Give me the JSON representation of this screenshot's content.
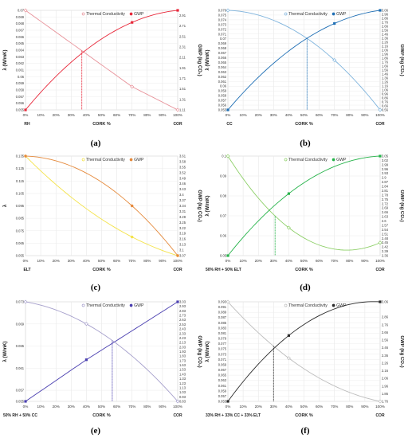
{
  "chart_data": [
    {
      "panel_label": "(a)",
      "type": "line",
      "xlabel": "CORK %",
      "ylabel": "λ (W/mK)",
      "y2label": "GWP (kg CO₂)",
      "left_category": "RH",
      "right_category": "COR",
      "x_ticks": [
        "0%",
        "10%",
        "20%",
        "30%",
        "40%",
        "50%",
        "60%",
        "70%",
        "80%",
        "90%",
        "100%"
      ],
      "y_ticks": [
        "0.07",
        "0.069",
        "0.068",
        "0.067",
        "0.066",
        "0.065",
        "0.064",
        "0.063",
        "0.062",
        "0.061",
        "0.06",
        "0.059",
        "0.058",
        "0.057",
        "0.056",
        "0.055"
      ],
      "y2_ticks": [
        "2.91",
        "2.71",
        "2.51",
        "2.31",
        "2.11",
        "1.91",
        "1.71",
        "1.51",
        "1.31",
        "1.11"
      ],
      "ylim": [
        0.055,
        0.07
      ],
      "y2lim": [
        1.11,
        3.01
      ],
      "grid": true,
      "legend_position": "top",
      "intersection_x": 37,
      "colors": {
        "primary": "#e8929a",
        "secondary": "#e8293b",
        "drop": "#e8293b"
      },
      "series": [
        {
          "name": "Thermal Conductivity",
          "axis": "left",
          "curve": "line",
          "x": [
            0,
            70,
            100
          ],
          "y": [
            0.07,
            0.0585,
            0.055
          ],
          "marker": "diamond"
        },
        {
          "name": "GWP",
          "axis": "right",
          "curve": "quad",
          "x": [
            0,
            70,
            100
          ],
          "y": [
            1.11,
            2.78,
            3.01
          ],
          "marker": "square"
        }
      ]
    },
    {
      "panel_label": "(b)",
      "type": "line",
      "xlabel": "CORK %",
      "ylabel": "λ (W/mK)",
      "y2label": "GWP (kg CO₂)",
      "left_category": "CC",
      "right_category": "COR",
      "x_ticks": [
        "0%",
        "10%",
        "20%",
        "30%",
        "40%",
        "50%",
        "60%",
        "70%",
        "80%",
        "90%",
        "100%"
      ],
      "y_ticks": [
        "0.076",
        "0.075",
        "0.074",
        "0.073",
        "0.072",
        "0.071",
        "0.07",
        "0.069",
        "0.068",
        "0.067",
        "0.066",
        "0.065",
        "0.064",
        "0.063",
        "0.062",
        "0.061",
        "0.06",
        "0.059",
        "0.058",
        "0.057",
        "0.056",
        "0.055"
      ],
      "y2_ticks": [
        "3.06",
        "2.96",
        "2.86",
        "2.76",
        "2.66",
        "2.56",
        "2.46",
        "2.36",
        "2.26",
        "2.16",
        "2.06",
        "1.96",
        "1.86",
        "1.76",
        "1.66",
        "1.56",
        "1.46",
        "1.36",
        "1.26",
        "1.16",
        "1.06",
        "0.96",
        "0.86",
        "0.76",
        "0.66",
        "0.56"
      ],
      "ylim": [
        0.055,
        0.076
      ],
      "y2lim": [
        0.56,
        3.06
      ],
      "grid": true,
      "legend_position": "top",
      "intersection_x": 52,
      "colors": {
        "primary": "#7fb4dd",
        "secondary": "#1f6fb5",
        "drop": "#1f6fb5"
      },
      "series": [
        {
          "name": "Thermal Conductivity",
          "axis": "left",
          "curve": "quad",
          "x": [
            0,
            70,
            100
          ],
          "y": [
            0.076,
            0.0655,
            0.055
          ],
          "marker": "diamond"
        },
        {
          "name": "GWP",
          "axis": "right",
          "curve": "quad",
          "x": [
            0,
            70,
            100
          ],
          "y": [
            0.56,
            2.73,
            3.06
          ],
          "marker": "square"
        }
      ]
    },
    {
      "panel_label": "(c)",
      "type": "line",
      "xlabel": "CORK %",
      "ylabel": "λ",
      "y2label": "GWP (kg CO₂)",
      "left_category": "ELT",
      "right_category": "COR",
      "x_ticks": [
        "0%",
        "10%",
        "20%",
        "30%",
        "40%",
        "50%",
        "60%",
        "70%",
        "80%",
        "90%",
        "100%"
      ],
      "y_ticks": [
        "0.135",
        "0.125",
        "0.115",
        "0.105",
        "0.095",
        "0.085",
        "0.075",
        "0.065",
        "0.055"
      ],
      "y2_ticks": [
        "3.61",
        "3.58",
        "3.55",
        "3.52",
        "3.49",
        "3.46",
        "3.43",
        "3.4",
        "3.37",
        "3.34",
        "3.31",
        "3.28",
        "3.25",
        "3.22",
        "3.19",
        "3.16",
        "3.13",
        "3.1",
        "3.07"
      ],
      "ylim": [
        0.055,
        0.135
      ],
      "y2lim": [
        3.07,
        3.61
      ],
      "grid": true,
      "legend_position": "top",
      "intersection_x": null,
      "colors": {
        "primary": "#f4e34a",
        "secondary": "#e58a3c",
        "drop": "#e58a3c"
      },
      "series": [
        {
          "name": "Thermal Conductivity",
          "axis": "left",
          "curve": "quad",
          "x": [
            0,
            70,
            100
          ],
          "y": [
            0.135,
            0.07,
            0.055
          ],
          "marker": "circle"
        },
        {
          "name": "GWP",
          "axis": "right",
          "curve": "quad",
          "x": [
            0,
            70,
            100
          ],
          "y": [
            3.61,
            3.34,
            3.07
          ],
          "marker": "circle"
        }
      ]
    },
    {
      "panel_label": "(d)",
      "type": "line",
      "xlabel": "CORK %",
      "ylabel": "λ (W/mK)",
      "y2label": "GWP (kg CO₂)",
      "left_category": "50% RH + 50% ELT",
      "right_category": "COR",
      "x_ticks": [
        "0%",
        "10%",
        "20%",
        "30%",
        "40%",
        "50%",
        "60%",
        "70%",
        "80%",
        "90%",
        "100%"
      ],
      "y_ticks": [
        "0.1",
        "0.09",
        "0.08",
        "0.07",
        "0.06",
        "0.05"
      ],
      "y2_ticks": [
        "3.05",
        "3.02",
        "2.99",
        "2.96",
        "2.93",
        "2.9",
        "2.87",
        "2.84",
        "2.81",
        "2.78",
        "2.75",
        "2.72",
        "2.69",
        "2.66",
        "2.63",
        "2.6",
        "2.57",
        "2.54",
        "2.51",
        "2.48",
        "2.45",
        "2.42",
        "2.39",
        "2.36"
      ],
      "ylim": [
        0.05,
        0.1
      ],
      "y2lim": [
        2.36,
        3.05
      ],
      "grid": true,
      "legend_position": "top",
      "intersection_x": 31,
      "colors": {
        "primary": "#8fd06a",
        "secondary": "#26b34a",
        "drop": "#26b34a"
      },
      "series": [
        {
          "name": "Thermal Conductivity",
          "axis": "left",
          "curve": "quad",
          "x": [
            0,
            40,
            100
          ],
          "y": [
            0.1,
            0.064,
            0.0565
          ],
          "marker": "diamond"
        },
        {
          "name": "GWP",
          "axis": "right",
          "curve": "quad",
          "x": [
            0,
            40,
            100
          ],
          "y": [
            2.36,
            2.79,
            3.05
          ],
          "marker": "square"
        }
      ]
    },
    {
      "panel_label": "(e)",
      "type": "line",
      "xlabel": "CORK %",
      "ylabel": "λ (W/mK)",
      "y2label": "GWP (kg CO₂)",
      "left_category": "50% RH + 50% CC",
      "right_category": "COR",
      "x_ticks": [
        "0%",
        "10%",
        "20%",
        "30%",
        "40%",
        "50%",
        "60%",
        "70%",
        "80%",
        "90%",
        "100%"
      ],
      "y_ticks": [
        "0.073",
        "0.069",
        "0.065",
        "0.061",
        "0.057",
        "0.055"
      ],
      "y2_ticks": [
        "3.03",
        "2.93",
        "2.83",
        "2.73",
        "2.63",
        "2.53",
        "2.43",
        "2.33",
        "2.23",
        "2.13",
        "2.03",
        "1.93",
        "1.83",
        "1.73",
        "1.63",
        "1.53",
        "1.43",
        "1.33",
        "1.23",
        "1.13",
        "1.03",
        "0.93",
        "0.83"
      ],
      "ylim": [
        0.055,
        0.073
      ],
      "y2lim": [
        0.83,
        3.03
      ],
      "grid": true,
      "legend_position": "top",
      "intersection_x": 57,
      "colors": {
        "primary": "#a6a0cc",
        "secondary": "#4a3fb0",
        "drop": "#4a3fb0"
      },
      "series": [
        {
          "name": "Thermal Conductivity",
          "axis": "left",
          "curve": "quad",
          "x": [
            0,
            40,
            100
          ],
          "y": [
            0.073,
            0.069,
            0.055
          ],
          "marker": "diamond"
        },
        {
          "name": "GWP",
          "axis": "right",
          "curve": "line",
          "x": [
            0,
            40,
            100
          ],
          "y": [
            0.83,
            1.75,
            3.03
          ],
          "marker": "square"
        }
      ]
    },
    {
      "panel_label": "(f)",
      "type": "line",
      "xlabel": "CORK %",
      "ylabel": "λ (W/mK)",
      "y2label": "GWP (kg CO₂)",
      "left_category": "33% RH + 33% CC + 33% ELT",
      "right_category": "COR",
      "x_ticks": [
        "0%",
        "10%",
        "20%",
        "30%",
        "40%",
        "50%",
        "60%",
        "70%",
        "80%",
        "90%",
        "100%"
      ],
      "y_ticks": [
        "0.093",
        "0.091",
        "0.089",
        "0.087",
        "0.085",
        "0.083",
        "0.081",
        "0.079",
        "0.077",
        "0.075",
        "0.073",
        "0.071",
        "0.069",
        "0.067",
        "0.065",
        "0.063",
        "0.061",
        "0.059",
        "0.057",
        "0.055"
      ],
      "y2_ticks": [
        "3.06",
        "2.86",
        "2.76",
        "2.66",
        "2.56",
        "2.46",
        "2.36",
        "2.26",
        "2.16",
        "2.06",
        "1.96",
        "1.86",
        "1.76"
      ],
      "ylim": [
        0.055,
        0.093
      ],
      "y2lim": [
        1.76,
        3.06
      ],
      "grid": true,
      "legend_position": "top",
      "intersection_x": 30,
      "colors": {
        "primary": "#bdbdbd",
        "secondary": "#2b2b2b",
        "drop": "#2b2b2b"
      },
      "series": [
        {
          "name": "Thermal Conductivity",
          "axis": "left",
          "curve": "quad",
          "x": [
            0,
            40,
            100
          ],
          "y": [
            0.093,
            0.0715,
            0.055
          ],
          "marker": "diamond"
        },
        {
          "name": "GWP",
          "axis": "right",
          "curve": "quad",
          "x": [
            0,
            40,
            100
          ],
          "y": [
            1.76,
            2.62,
            3.06
          ],
          "marker": "square"
        }
      ]
    }
  ]
}
